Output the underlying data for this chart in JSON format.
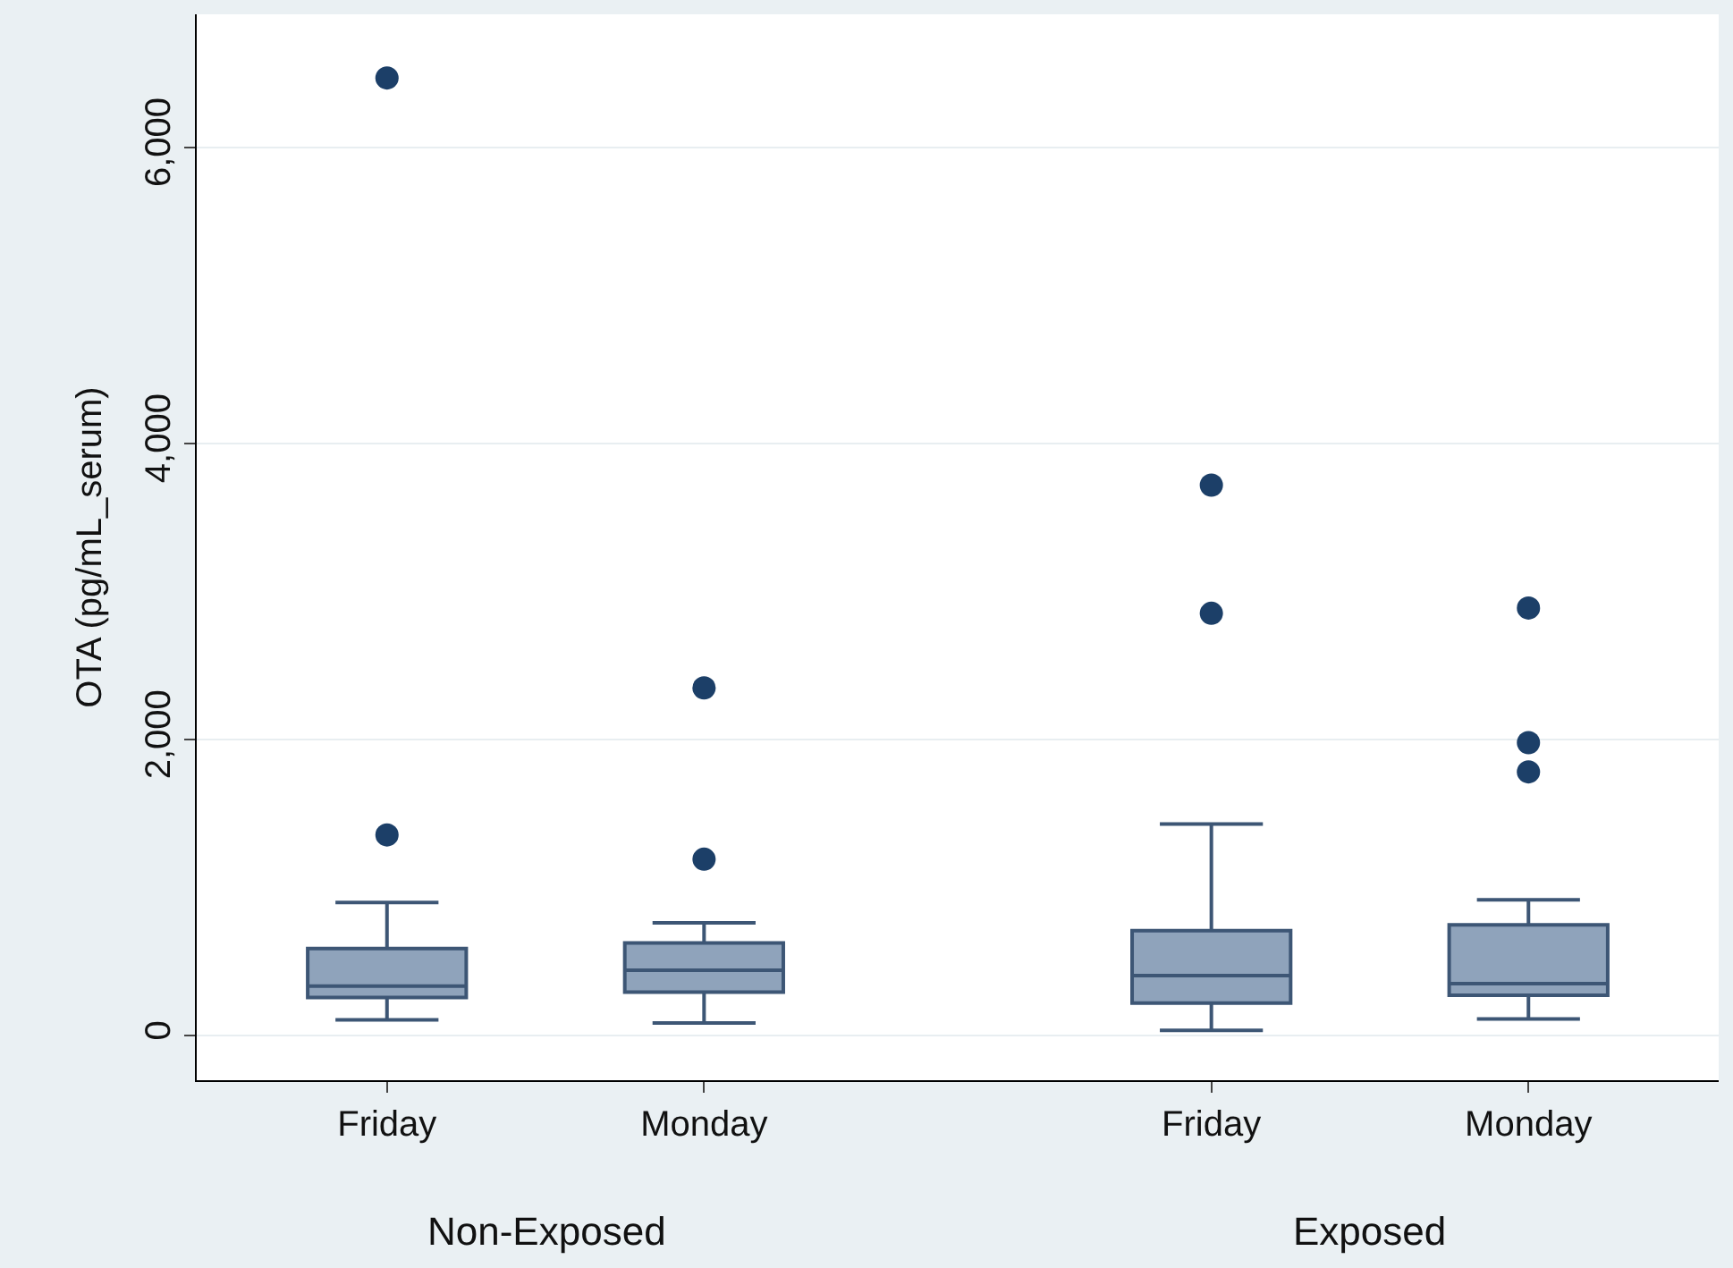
{
  "chart_data": {
    "type": "box",
    "ylabel": "OTA (pg/mL_serum)",
    "categories": [
      "Friday",
      "Monday",
      "Friday",
      "Monday"
    ],
    "annotations": [
      "Non-Exposed",
      "Exposed"
    ],
    "boxes": [
      {
        "low": 107,
        "q1": 258,
        "median": 336,
        "q3": 590,
        "high": 900,
        "outliers": [
          1357,
          6470
        ]
      },
      {
        "low": 86,
        "q1": 295,
        "median": 443,
        "q3": 627,
        "high": 763,
        "outliers": [
          1193,
          2350
        ]
      },
      {
        "low": 37,
        "q1": 221,
        "median": 406,
        "q3": 710,
        "high": 1430,
        "outliers": [
          2854,
          3720
        ]
      },
      {
        "low": 114,
        "q1": 274,
        "median": 353,
        "q3": 750,
        "high": 919,
        "outliers": [
          1783,
          1980,
          2890
        ]
      }
    ],
    "color": "#8fa3bb",
    "ylim": [
      -300,
      6900
    ],
    "yticks": [
      {
        "value": 0,
        "label": "0"
      },
      {
        "value": 2000,
        "label": "2,000"
      },
      {
        "value": 4000,
        "label": "4,000"
      },
      {
        "value": 6000,
        "label": "6,000"
      }
    ],
    "grid": "y",
    "marker": "circle"
  }
}
